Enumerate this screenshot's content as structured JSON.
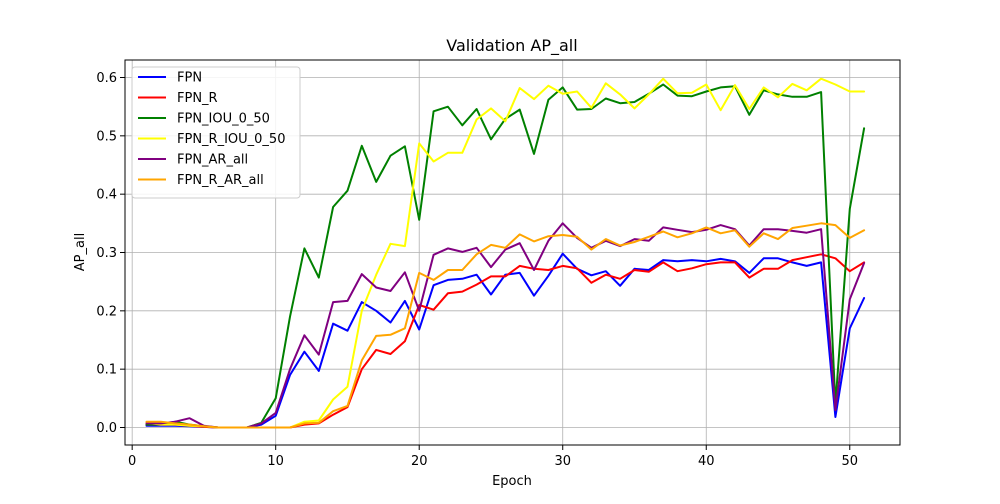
{
  "chart_data": {
    "type": "line",
    "title": "Validation AP_all",
    "xlabel": "Epoch",
    "ylabel": "AP_all",
    "xlim": [
      -0.5,
      53.5
    ],
    "ylim": [
      -0.03,
      0.63
    ],
    "xticks": [
      0,
      10,
      20,
      30,
      40,
      50
    ],
    "yticks": [
      0.0,
      0.1,
      0.2,
      0.3,
      0.4,
      0.5,
      0.6
    ],
    "xtick_labels": [
      "0",
      "10",
      "20",
      "30",
      "40",
      "50"
    ],
    "ytick_labels": [
      "0.0",
      "0.1",
      "0.2",
      "0.3",
      "0.4",
      "0.5",
      "0.6"
    ],
    "grid": true,
    "legend_position": "top-left",
    "x": [
      1,
      2,
      3,
      4,
      5,
      6,
      7,
      8,
      9,
      10,
      11,
      12,
      13,
      14,
      15,
      16,
      17,
      18,
      19,
      20,
      21,
      22,
      23,
      24,
      25,
      26,
      27,
      28,
      29,
      30,
      31,
      32,
      33,
      34,
      35,
      36,
      37,
      38,
      39,
      40,
      41,
      42,
      43,
      44,
      45,
      46,
      47,
      48,
      49,
      50,
      51
    ],
    "series": [
      {
        "name": "FPN",
        "color": "#0000ff",
        "values": [
          0.003,
          0.003,
          0.003,
          0.002,
          0.001,
          0.0,
          0.0,
          0.0,
          0.005,
          0.02,
          0.09,
          0.13,
          0.097,
          0.178,
          0.166,
          0.215,
          0.2,
          0.18,
          0.217,
          0.168,
          0.244,
          0.253,
          0.255,
          0.262,
          0.228,
          0.262,
          0.265,
          0.226,
          0.26,
          0.298,
          0.272,
          0.261,
          0.268,
          0.243,
          0.272,
          0.27,
          0.287,
          0.285,
          0.287,
          0.285,
          0.289,
          0.285,
          0.265,
          0.29,
          0.29,
          0.283,
          0.277,
          0.283,
          0.018,
          0.17,
          0.222
        ]
      },
      {
        "name": "FPN_R",
        "color": "#ff0000",
        "values": [
          0.005,
          0.005,
          0.005,
          0.003,
          0.001,
          0.0,
          0.0,
          0.0,
          0.0,
          0.0,
          0.0,
          0.005,
          0.007,
          0.022,
          0.035,
          0.1,
          0.133,
          0.126,
          0.148,
          0.21,
          0.202,
          0.23,
          0.233,
          0.245,
          0.259,
          0.259,
          0.277,
          0.272,
          0.27,
          0.277,
          0.273,
          0.248,
          0.262,
          0.255,
          0.27,
          0.267,
          0.283,
          0.268,
          0.273,
          0.28,
          0.283,
          0.283,
          0.257,
          0.272,
          0.272,
          0.287,
          0.292,
          0.297,
          0.29,
          0.268,
          0.283
        ]
      },
      {
        "name": "FPN_IOU_0_50",
        "color": "#008000",
        "values": [
          0.005,
          0.005,
          0.01,
          0.005,
          0.002,
          0.0,
          0.0,
          0.0,
          0.008,
          0.05,
          0.19,
          0.307,
          0.257,
          0.378,
          0.406,
          0.483,
          0.421,
          0.466,
          0.482,
          0.356,
          0.542,
          0.55,
          0.518,
          0.546,
          0.494,
          0.529,
          0.545,
          0.469,
          0.562,
          0.583,
          0.545,
          0.546,
          0.564,
          0.556,
          0.558,
          0.572,
          0.588,
          0.569,
          0.568,
          0.576,
          0.583,
          0.585,
          0.536,
          0.578,
          0.571,
          0.567,
          0.567,
          0.575,
          0.04,
          0.375,
          0.513
        ]
      },
      {
        "name": "FPN_R_IOU_0_50",
        "color": "#ffff00",
        "values": [
          0.008,
          0.005,
          0.005,
          0.003,
          0.002,
          0.0,
          0.0,
          0.0,
          0.0,
          0.0,
          0.0,
          0.01,
          0.012,
          0.048,
          0.07,
          0.2,
          0.262,
          0.315,
          0.311,
          0.487,
          0.456,
          0.471,
          0.471,
          0.528,
          0.547,
          0.525,
          0.582,
          0.563,
          0.586,
          0.572,
          0.576,
          0.548,
          0.59,
          0.571,
          0.547,
          0.571,
          0.598,
          0.573,
          0.574,
          0.588,
          0.544,
          0.587,
          0.546,
          0.583,
          0.566,
          0.589,
          0.578,
          0.598,
          0.588,
          0.576,
          0.576
        ]
      },
      {
        "name": "FPN_AR_all",
        "color": "#800080",
        "values": [
          0.007,
          0.007,
          0.01,
          0.016,
          0.003,
          0.0,
          0.0,
          0.0,
          0.007,
          0.025,
          0.1,
          0.158,
          0.125,
          0.215,
          0.217,
          0.263,
          0.24,
          0.234,
          0.266,
          0.2,
          0.296,
          0.307,
          0.301,
          0.308,
          0.275,
          0.305,
          0.316,
          0.27,
          0.32,
          0.35,
          0.325,
          0.308,
          0.32,
          0.311,
          0.323,
          0.32,
          0.343,
          0.339,
          0.335,
          0.339,
          0.347,
          0.34,
          0.312,
          0.34,
          0.34,
          0.337,
          0.334,
          0.34,
          0.03,
          0.22,
          0.282
        ]
      },
      {
        "name": "FPN_R_AR_all",
        "color": "#ffa500",
        "values": [
          0.01,
          0.01,
          0.007,
          0.005,
          0.002,
          0.0,
          0.0,
          0.0,
          0.0,
          0.0,
          0.0,
          0.007,
          0.008,
          0.028,
          0.037,
          0.115,
          0.157,
          0.159,
          0.17,
          0.265,
          0.253,
          0.27,
          0.27,
          0.297,
          0.313,
          0.308,
          0.331,
          0.319,
          0.328,
          0.33,
          0.327,
          0.305,
          0.323,
          0.312,
          0.318,
          0.327,
          0.336,
          0.326,
          0.333,
          0.343,
          0.333,
          0.338,
          0.31,
          0.333,
          0.323,
          0.342,
          0.346,
          0.35,
          0.347,
          0.325,
          0.338
        ]
      }
    ]
  }
}
